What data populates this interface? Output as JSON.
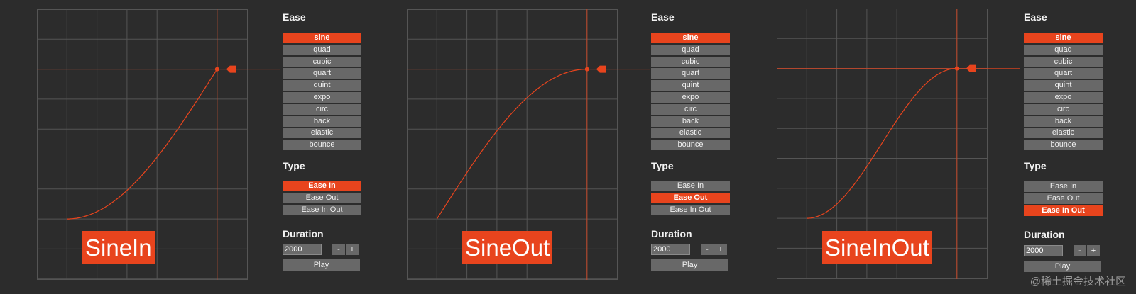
{
  "panels": [
    {
      "caption": "SineIn",
      "curve": "sine-in",
      "ease_heading": "Ease",
      "type_heading": "Type",
      "duration_heading": "Duration",
      "ease_options": [
        "sine",
        "quad",
        "cubic",
        "quart",
        "quint",
        "expo",
        "circ",
        "back",
        "elastic",
        "bounce"
      ],
      "ease_selected": "sine",
      "type_options": [
        "Ease In",
        "Ease Out",
        "Ease In Out"
      ],
      "type_selected": "Ease In",
      "duration_value": "2000",
      "minus_label": "-",
      "plus_label": "+",
      "play_label": "Play"
    },
    {
      "caption": "SineOut",
      "curve": "sine-out",
      "ease_heading": "Ease",
      "type_heading": "Type",
      "duration_heading": "Duration",
      "ease_options": [
        "sine",
        "quad",
        "cubic",
        "quart",
        "quint",
        "expo",
        "circ",
        "back",
        "elastic",
        "bounce"
      ],
      "ease_selected": "sine",
      "type_options": [
        "Ease In",
        "Ease Out",
        "Ease In Out"
      ],
      "type_selected": "Ease Out",
      "duration_value": "2000",
      "minus_label": "-",
      "plus_label": "+",
      "play_label": "Play"
    },
    {
      "caption": "SineInOut",
      "curve": "sine-in-out",
      "ease_heading": "Ease",
      "type_heading": "Type",
      "duration_heading": "Duration",
      "ease_options": [
        "sine",
        "quad",
        "cubic",
        "quart",
        "quint",
        "expo",
        "circ",
        "back",
        "elastic",
        "bounce"
      ],
      "ease_selected": "sine",
      "type_options": [
        "Ease In",
        "Ease Out",
        "Ease In Out"
      ],
      "type_selected": "Ease In Out",
      "duration_value": "2000",
      "minus_label": "-",
      "plus_label": "+",
      "play_label": "Play"
    }
  ],
  "watermark": "@稀土掘金技术社区",
  "colors": {
    "accent": "#e8441d",
    "button": "#686868",
    "background": "#2c2c2c",
    "grid": "#555555"
  },
  "icons": {
    "marker": "tag-pointer-icon"
  }
}
